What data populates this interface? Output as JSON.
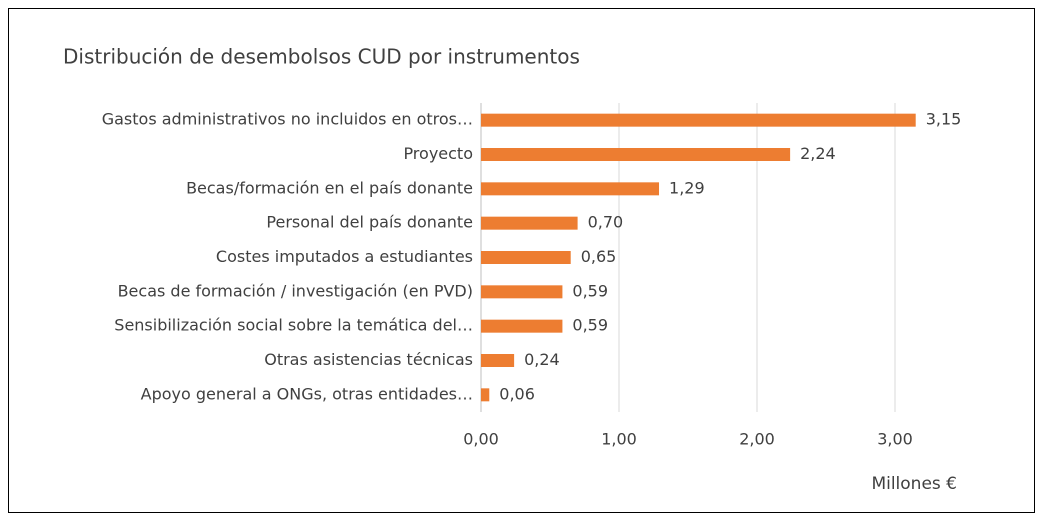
{
  "chart_data": {
    "type": "bar",
    "orientation": "horizontal",
    "title": "Distribución de desembolsos CUD por instrumentos",
    "x_axis_label": "Millones €",
    "categories": [
      "Gastos administrativos no incluidos en otros…",
      "Proyecto",
      "Becas/formación en el país donante",
      "Personal del país donante",
      "Costes imputados a estudiantes",
      "Becas de formación / investigación (en PVD)",
      "Sensibilización social sobre la temática del…",
      "Otras asistencias técnicas",
      "Apoyo general a ONGs, otras entidades…"
    ],
    "values": [
      3.15,
      2.24,
      1.29,
      0.7,
      0.65,
      0.59,
      0.59,
      0.24,
      0.06
    ],
    "value_labels": [
      "3,15",
      "2,24",
      "1,29",
      "0,70",
      "0,65",
      "0,59",
      "0,59",
      "0,24",
      "0,06"
    ],
    "color": "#ed7d31",
    "xlim": [
      0,
      3.5
    ],
    "xticks": [
      {
        "value": 0,
        "label": "0,00"
      },
      {
        "value": 1,
        "label": "1,00"
      },
      {
        "value": 2,
        "label": "2,00"
      },
      {
        "value": 3,
        "label": "3,00"
      }
    ],
    "grid": true
  }
}
